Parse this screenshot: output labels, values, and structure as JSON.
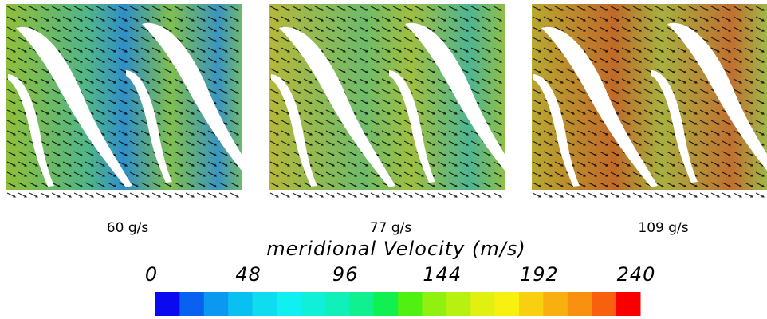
{
  "panels": [
    {
      "label": "60 g/s"
    },
    {
      "label": "77 g/s"
    },
    {
      "label": "109 g/s"
    }
  ],
  "colorbar": {
    "title": "meridional Velocity (m/s)",
    "ticks": [
      0,
      48,
      96,
      144,
      192,
      240
    ],
    "colors": [
      "#0a0af0",
      "#0a60f0",
      "#0a98f0",
      "#0ac0f0",
      "#10dcf0",
      "#10f0f0",
      "#10f0d8",
      "#10f0b8",
      "#10f090",
      "#10f050",
      "#50f010",
      "#90f010",
      "#b8f010",
      "#e0f010",
      "#f8f010",
      "#f8d010",
      "#f8b010",
      "#f89010",
      "#f86010",
      "#f80000"
    ]
  }
}
